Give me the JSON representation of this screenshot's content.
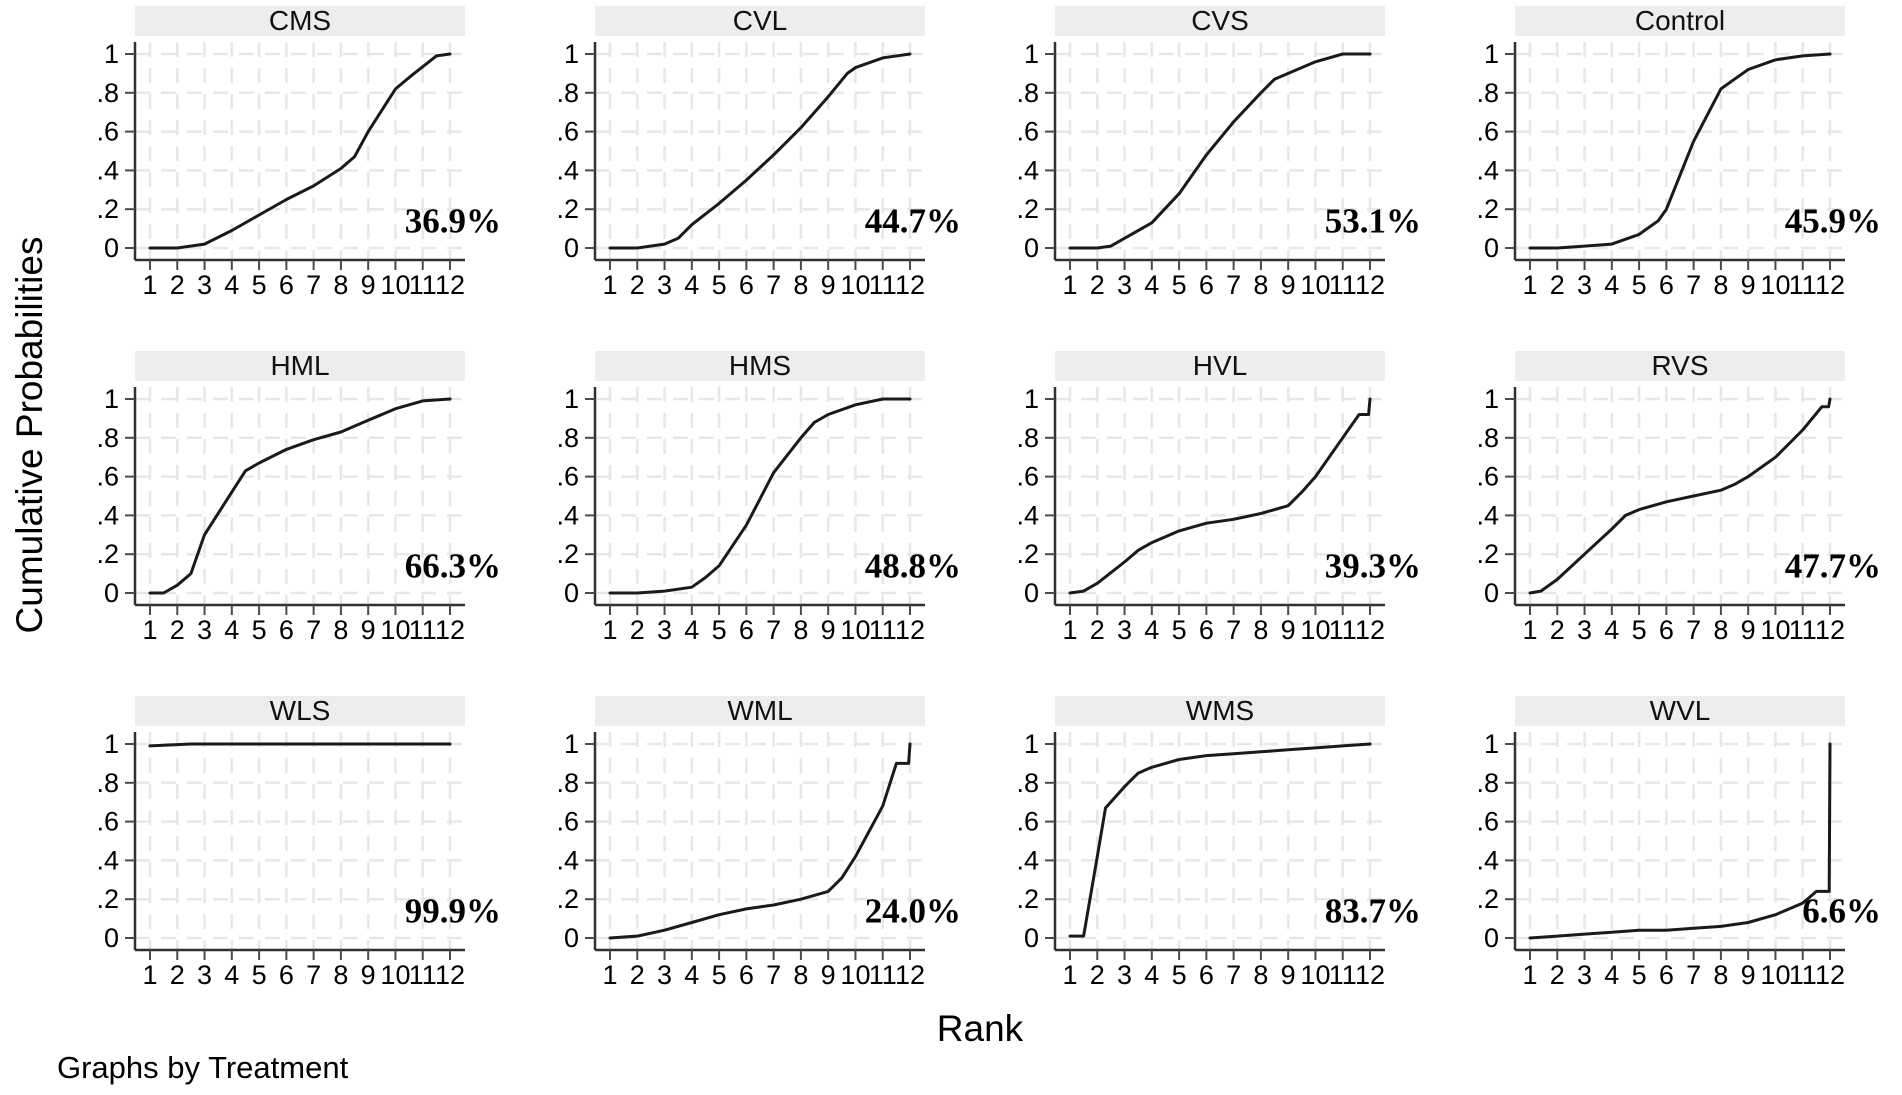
{
  "figure": {
    "y_axis_title": "Cumulative Probabilities",
    "x_axis_title": "Rank",
    "caption": "Graphs by Treatment"
  },
  "colors": {
    "background": "#ffffff",
    "strip_bg": "#ededed",
    "grid": "#e7e7e7",
    "axis": "#303030",
    "tick": "#4a4a4a",
    "text": "#000000",
    "curve": "#1a1a1a"
  },
  "chart_data": {
    "type": "line",
    "layout": "small multiples, 3 rows x 4 columns (graphs by treatment)",
    "x_label": "Rank",
    "y_label": "Cumulative Probabilities",
    "x_ticks": [
      1,
      2,
      3,
      4,
      5,
      6,
      7,
      8,
      9,
      10,
      11,
      12
    ],
    "y_ticks": [
      {
        "label": "0",
        "value": 0
      },
      {
        "label": ".2",
        "value": 0.2
      },
      {
        "label": ".4",
        "value": 0.4
      },
      {
        "label": ".6",
        "value": 0.6
      },
      {
        "label": ".8",
        "value": 0.8
      },
      {
        "label": "1",
        "value": 1
      }
    ],
    "xlim": [
      1,
      12
    ],
    "ylim": [
      0,
      1
    ],
    "grid": true,
    "panels": [
      {
        "title": "CMS",
        "annotation": "36.9%",
        "points": [
          [
            1,
            0
          ],
          [
            2,
            0
          ],
          [
            3,
            0.02
          ],
          [
            4,
            0.09
          ],
          [
            5,
            0.17
          ],
          [
            6,
            0.25
          ],
          [
            7,
            0.32
          ],
          [
            8,
            0.41
          ],
          [
            8.5,
            0.47
          ],
          [
            9,
            0.6
          ],
          [
            10,
            0.82
          ],
          [
            10.6,
            0.89
          ],
          [
            11.5,
            0.99
          ],
          [
            12,
            1
          ]
        ]
      },
      {
        "title": "CVL",
        "annotation": "44.7%",
        "points": [
          [
            1,
            0
          ],
          [
            2,
            0
          ],
          [
            3,
            0.02
          ],
          [
            3.5,
            0.05
          ],
          [
            4,
            0.12
          ],
          [
            5,
            0.23
          ],
          [
            6,
            0.35
          ],
          [
            7,
            0.48
          ],
          [
            8,
            0.62
          ],
          [
            9,
            0.78
          ],
          [
            9.7,
            0.9
          ],
          [
            10,
            0.93
          ],
          [
            11,
            0.98
          ],
          [
            12,
            1
          ]
        ]
      },
      {
        "title": "CVS",
        "annotation": "53.1%",
        "points": [
          [
            1,
            0
          ],
          [
            2,
            0
          ],
          [
            2.5,
            0.01
          ],
          [
            3,
            0.05
          ],
          [
            4,
            0.13
          ],
          [
            5,
            0.28
          ],
          [
            6,
            0.48
          ],
          [
            7,
            0.65
          ],
          [
            8,
            0.8
          ],
          [
            8.5,
            0.87
          ],
          [
            9,
            0.9
          ],
          [
            10,
            0.96
          ],
          [
            11,
            1
          ],
          [
            12,
            1
          ]
        ]
      },
      {
        "title": "Control",
        "annotation": "45.9%",
        "points": [
          [
            1,
            0
          ],
          [
            2,
            0
          ],
          [
            3,
            0.01
          ],
          [
            4,
            0.02
          ],
          [
            5,
            0.07
          ],
          [
            5.7,
            0.14
          ],
          [
            6,
            0.2
          ],
          [
            7,
            0.55
          ],
          [
            8,
            0.82
          ],
          [
            8.5,
            0.87
          ],
          [
            9,
            0.92
          ],
          [
            10,
            0.97
          ],
          [
            11,
            0.99
          ],
          [
            12,
            1
          ]
        ]
      },
      {
        "title": "HML",
        "annotation": "66.3%",
        "points": [
          [
            1,
            0
          ],
          [
            1.5,
            0
          ],
          [
            2,
            0.04
          ],
          [
            2.5,
            0.1
          ],
          [
            3,
            0.3
          ],
          [
            4,
            0.52
          ],
          [
            4.5,
            0.63
          ],
          [
            5,
            0.67
          ],
          [
            6,
            0.74
          ],
          [
            7,
            0.79
          ],
          [
            8,
            0.83
          ],
          [
            9,
            0.89
          ],
          [
            10,
            0.95
          ],
          [
            11,
            0.99
          ],
          [
            12,
            1
          ]
        ]
      },
      {
        "title": "HMS",
        "annotation": "48.8%",
        "points": [
          [
            1,
            0
          ],
          [
            2,
            0
          ],
          [
            3,
            0.01
          ],
          [
            4,
            0.03
          ],
          [
            4.5,
            0.08
          ],
          [
            5,
            0.14
          ],
          [
            6,
            0.35
          ],
          [
            7,
            0.62
          ],
          [
            8,
            0.8
          ],
          [
            8.5,
            0.88
          ],
          [
            9,
            0.92
          ],
          [
            10,
            0.97
          ],
          [
            11,
            1
          ],
          [
            12,
            1
          ]
        ]
      },
      {
        "title": "HVL",
        "annotation": "39.3%",
        "points": [
          [
            1,
            0
          ],
          [
            1.5,
            0.01
          ],
          [
            2,
            0.05
          ],
          [
            3,
            0.16
          ],
          [
            3.5,
            0.22
          ],
          [
            4,
            0.26
          ],
          [
            5,
            0.32
          ],
          [
            6,
            0.36
          ],
          [
            7,
            0.38
          ],
          [
            8,
            0.41
          ],
          [
            9,
            0.45
          ],
          [
            9.5,
            0.52
          ],
          [
            10,
            0.6
          ],
          [
            11,
            0.8
          ],
          [
            11.6,
            0.92
          ],
          [
            11.95,
            0.92
          ],
          [
            12,
            1
          ]
        ]
      },
      {
        "title": "RVS",
        "annotation": "47.7%",
        "points": [
          [
            1,
            0
          ],
          [
            1.4,
            0.01
          ],
          [
            2,
            0.07
          ],
          [
            3,
            0.2
          ],
          [
            4,
            0.33
          ],
          [
            4.5,
            0.4
          ],
          [
            5,
            0.43
          ],
          [
            6,
            0.47
          ],
          [
            7,
            0.5
          ],
          [
            8,
            0.53
          ],
          [
            8.5,
            0.56
          ],
          [
            9,
            0.6
          ],
          [
            10,
            0.7
          ],
          [
            11,
            0.84
          ],
          [
            11.7,
            0.96
          ],
          [
            11.95,
            0.96
          ],
          [
            12,
            1
          ]
        ]
      },
      {
        "title": "WLS",
        "annotation": "99.9%",
        "points": [
          [
            1,
            0.99
          ],
          [
            2.5,
            1
          ],
          [
            12,
            1
          ]
        ]
      },
      {
        "title": "WML",
        "annotation": "24.0%",
        "points": [
          [
            1,
            0
          ],
          [
            2,
            0.01
          ],
          [
            3,
            0.04
          ],
          [
            4,
            0.08
          ],
          [
            5,
            0.12
          ],
          [
            6,
            0.15
          ],
          [
            7,
            0.17
          ],
          [
            8,
            0.2
          ],
          [
            9,
            0.24
          ],
          [
            9.5,
            0.31
          ],
          [
            10,
            0.42
          ],
          [
            11,
            0.68
          ],
          [
            11.5,
            0.9
          ],
          [
            11.95,
            0.9
          ],
          [
            12,
            1
          ]
        ]
      },
      {
        "title": "WMS",
        "annotation": "83.7%",
        "points": [
          [
            1,
            0.01
          ],
          [
            1.5,
            0.01
          ],
          [
            2,
            0.42
          ],
          [
            2.3,
            0.67
          ],
          [
            3,
            0.78
          ],
          [
            3.5,
            0.85
          ],
          [
            4,
            0.88
          ],
          [
            5,
            0.92
          ],
          [
            6,
            0.94
          ],
          [
            7,
            0.95
          ],
          [
            8,
            0.96
          ],
          [
            9,
            0.97
          ],
          [
            10,
            0.98
          ],
          [
            11,
            0.99
          ],
          [
            12,
            1
          ]
        ]
      },
      {
        "title": "WVL",
        "annotation": "6.6%",
        "points": [
          [
            1,
            0
          ],
          [
            2,
            0.01
          ],
          [
            3,
            0.02
          ],
          [
            4,
            0.03
          ],
          [
            5,
            0.04
          ],
          [
            6,
            0.04
          ],
          [
            7,
            0.05
          ],
          [
            8,
            0.06
          ],
          [
            9,
            0.08
          ],
          [
            10,
            0.12
          ],
          [
            11,
            0.18
          ],
          [
            11.5,
            0.24
          ],
          [
            11.97,
            0.24
          ],
          [
            12,
            1
          ]
        ]
      }
    ]
  }
}
